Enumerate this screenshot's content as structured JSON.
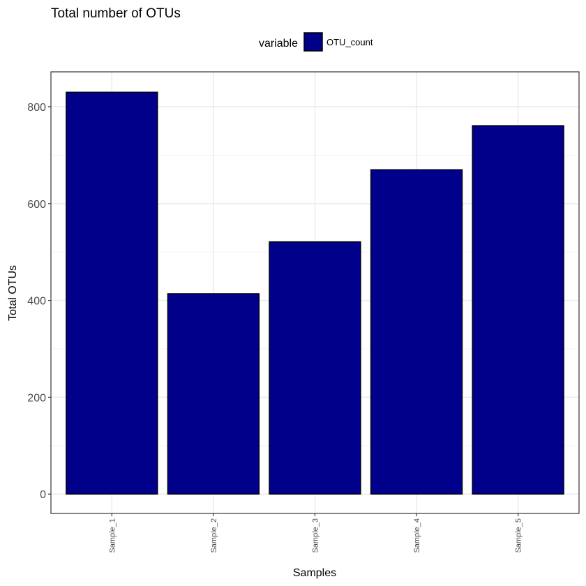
{
  "chart_data": {
    "type": "bar",
    "title": "Total number of OTUs",
    "xlabel": "Samples",
    "ylabel": "Total OTUs",
    "categories": [
      "Sample_1",
      "Sample_2",
      "Sample_3",
      "Sample_4",
      "Sample_5"
    ],
    "series": [
      {
        "name": "OTU_count",
        "values": [
          830,
          414,
          521,
          670,
          761
        ],
        "color": "#00008b"
      }
    ],
    "ylim": [
      -40,
      872
    ],
    "yticks": [
      0,
      200,
      400,
      600,
      800
    ],
    "grid": true,
    "legend": {
      "title": "variable",
      "placement": "top"
    },
    "colors": {
      "bar_fill": "#00008b",
      "bar_outline": "#000000",
      "grid_major": "#ebebeb",
      "grid_minor": "#f3f3f3",
      "panel_border": "#333333",
      "tick_text": "#4d4d4d"
    }
  }
}
